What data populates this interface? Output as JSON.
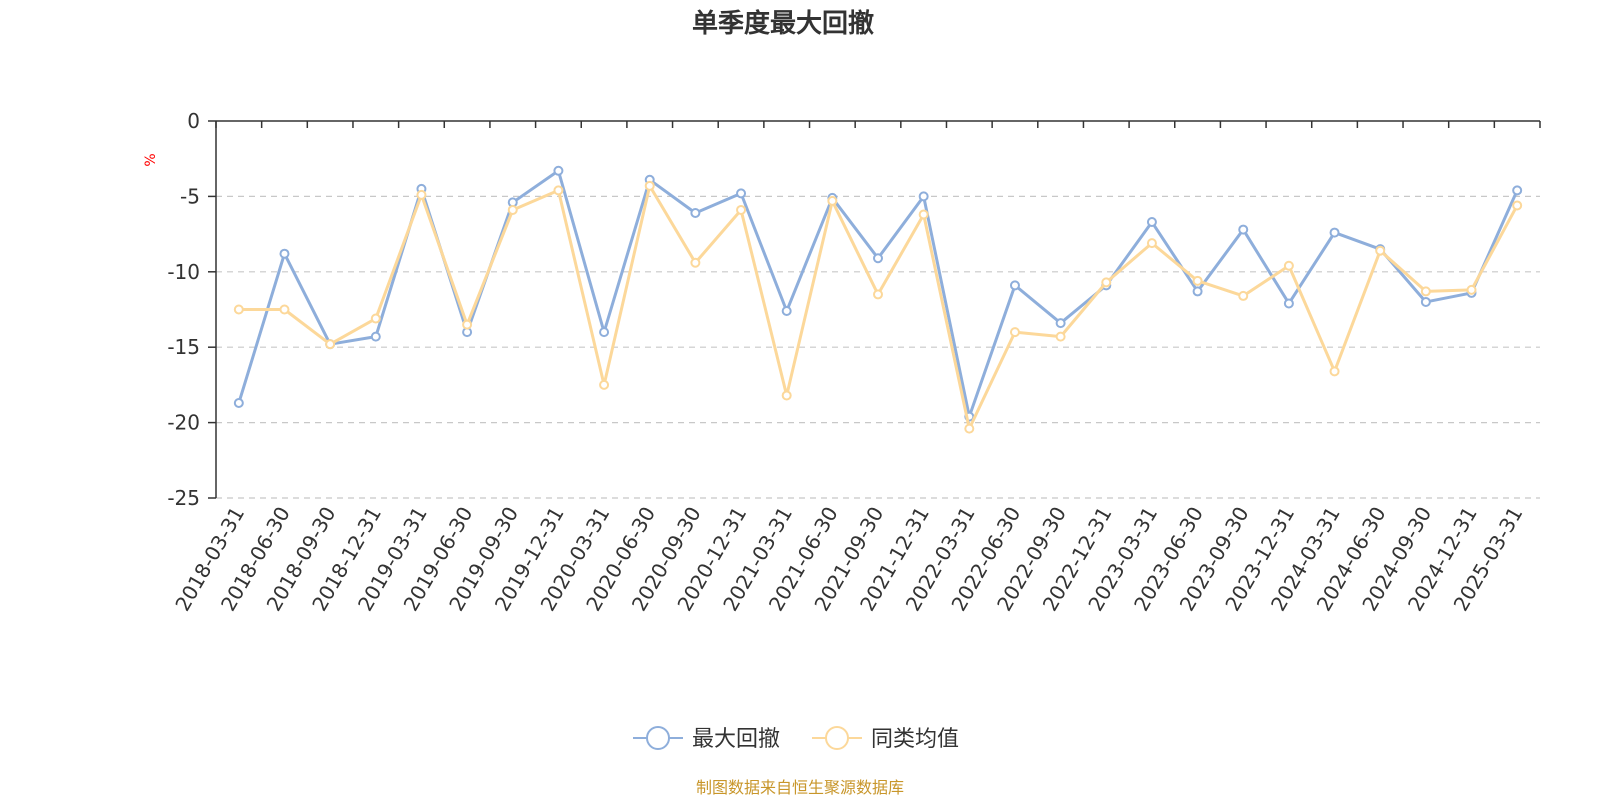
{
  "chart_data": {
    "type": "line",
    "title": "单季度最大回撤",
    "ylabel": "%",
    "ylim": [
      -25,
      0
    ],
    "yticks": [
      0,
      -5,
      -10,
      -15,
      -20,
      -25
    ],
    "grid": true,
    "legend_position": "bottom",
    "categories": [
      "2018-03-31",
      "2018-06-30",
      "2018-09-30",
      "2018-12-31",
      "2019-03-31",
      "2019-06-30",
      "2019-09-30",
      "2019-12-31",
      "2020-03-31",
      "2020-06-30",
      "2020-09-30",
      "2020-12-31",
      "2021-03-31",
      "2021-06-30",
      "2021-09-30",
      "2021-12-31",
      "2022-03-31",
      "2022-06-30",
      "2022-09-30",
      "2022-12-31",
      "2023-03-31",
      "2023-06-30",
      "2023-09-30",
      "2023-12-31",
      "2024-03-31",
      "2024-06-30",
      "2024-09-30",
      "2024-12-31",
      "2025-03-31"
    ],
    "series": [
      {
        "name": "最大回撤",
        "color": "#8eaedb",
        "values": [
          -18.7,
          -8.8,
          -14.8,
          -14.3,
          -4.5,
          -14.0,
          -5.4,
          -3.3,
          -14.0,
          -3.9,
          -6.1,
          -4.8,
          -12.6,
          -5.1,
          -9.1,
          -5.0,
          -19.6,
          -10.9,
          -13.4,
          -10.9,
          -6.7,
          -11.3,
          -7.2,
          -12.1,
          -7.4,
          -8.5,
          -12.0,
          -11.4,
          -4.6
        ]
      },
      {
        "name": "同类均值",
        "color": "#fcd89a",
        "values": [
          -12.5,
          -12.5,
          -14.8,
          -13.1,
          -4.9,
          -13.5,
          -5.9,
          -4.6,
          -17.5,
          -4.3,
          -9.4,
          -5.9,
          -18.2,
          -5.3,
          -11.5,
          -6.2,
          -20.4,
          -14.0,
          -14.3,
          -10.7,
          -8.1,
          -10.6,
          -11.6,
          -9.6,
          -16.6,
          -8.6,
          -11.3,
          -11.2,
          -5.6
        ]
      }
    ]
  },
  "footer": {
    "source": "制图数据来自恒生聚源数据库"
  }
}
